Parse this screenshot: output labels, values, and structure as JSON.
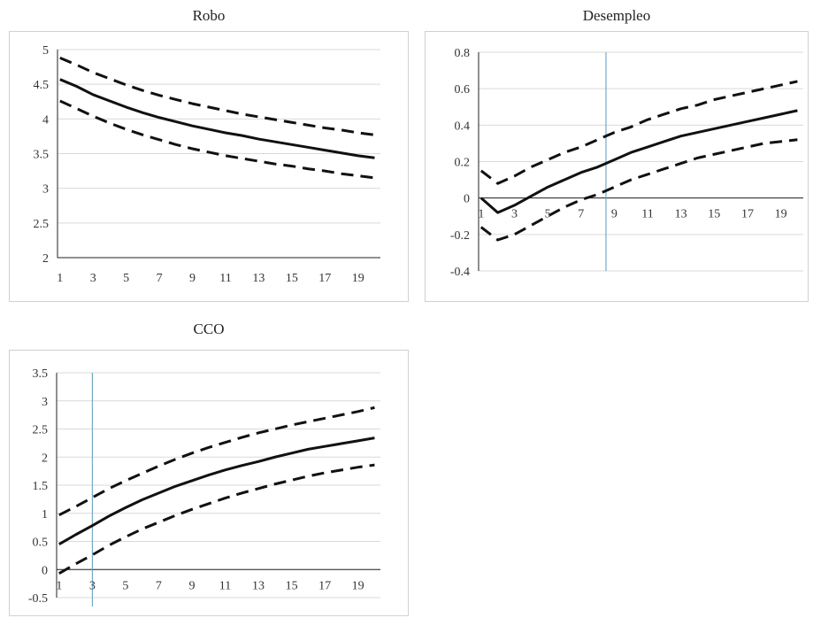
{
  "charts": {
    "robo": {
      "title": "Robo",
      "chart_data": {
        "type": "line",
        "title": "Robo",
        "x": [
          1,
          2,
          3,
          4,
          5,
          6,
          7,
          8,
          9,
          10,
          11,
          12,
          13,
          14,
          15,
          16,
          17,
          18,
          19,
          20
        ],
        "x_tick_labels": [
          "1",
          "3",
          "5",
          "7",
          "9",
          "11",
          "13",
          "15",
          "17",
          "19"
        ],
        "y_tick_labels": [
          "2",
          "2.5",
          "3",
          "3.5",
          "4",
          "4.5",
          "5"
        ],
        "ylim": [
          2,
          5
        ],
        "grid": true,
        "series": [
          {
            "style": "solid",
            "values": [
              4.57,
              4.47,
              4.35,
              4.26,
              4.17,
              4.09,
              4.02,
              3.96,
              3.9,
              3.85,
              3.8,
              3.76,
              3.71,
              3.67,
              3.63,
              3.59,
              3.55,
              3.51,
              3.47,
              3.44
            ]
          },
          {
            "style": "dashed",
            "values": [
              4.88,
              4.78,
              4.67,
              4.58,
              4.49,
              4.41,
              4.34,
              4.28,
              4.22,
              4.17,
              4.12,
              4.07,
              4.03,
              3.99,
              3.95,
              3.91,
              3.87,
              3.84,
              3.8,
              3.77
            ]
          },
          {
            "style": "dashed",
            "values": [
              4.26,
              4.15,
              4.04,
              3.94,
              3.85,
              3.77,
              3.7,
              3.63,
              3.57,
              3.52,
              3.47,
              3.43,
              3.39,
              3.35,
              3.32,
              3.28,
              3.25,
              3.21,
              3.18,
              3.15
            ]
          }
        ],
        "vline_x": null
      }
    },
    "desempleo": {
      "title": "Desempleo",
      "chart_data": {
        "type": "line",
        "title": "Desempleo",
        "x": [
          1,
          2,
          3,
          4,
          5,
          6,
          7,
          8,
          9,
          10,
          11,
          12,
          13,
          14,
          15,
          16,
          17,
          18,
          19,
          20
        ],
        "x_tick_labels": [
          "1",
          "3",
          "5",
          "7",
          "9",
          "11",
          "13",
          "15",
          "17",
          "19"
        ],
        "y_tick_labels": [
          "-0.4",
          "-0.2",
          "0",
          "0.2",
          "0.4",
          "0.6",
          "0.8"
        ],
        "ylim": [
          -0.4,
          0.8
        ],
        "grid": true,
        "series": [
          {
            "style": "solid",
            "values": [
              0.0,
              -0.08,
              -0.04,
              0.01,
              0.06,
              0.1,
              0.14,
              0.17,
              0.21,
              0.25,
              0.28,
              0.31,
              0.34,
              0.36,
              0.38,
              0.4,
              0.42,
              0.44,
              0.46,
              0.48
            ]
          },
          {
            "style": "dashed",
            "values": [
              0.15,
              0.08,
              0.12,
              0.17,
              0.21,
              0.25,
              0.28,
              0.32,
              0.36,
              0.39,
              0.43,
              0.46,
              0.49,
              0.51,
              0.54,
              0.56,
              0.58,
              0.6,
              0.62,
              0.64
            ]
          },
          {
            "style": "dashed",
            "values": [
              -0.16,
              -0.23,
              -0.2,
              -0.15,
              -0.1,
              -0.05,
              -0.01,
              0.02,
              0.06,
              0.1,
              0.13,
              0.16,
              0.19,
              0.22,
              0.24,
              0.26,
              0.28,
              0.3,
              0.31,
              0.32
            ]
          }
        ],
        "vline_x": 8.5
      }
    },
    "cco": {
      "title": "CCO",
      "chart_data": {
        "type": "line",
        "title": "CCO",
        "x": [
          1,
          2,
          3,
          4,
          5,
          6,
          7,
          8,
          9,
          10,
          11,
          12,
          13,
          14,
          15,
          16,
          17,
          18,
          19,
          20
        ],
        "x_tick_labels": [
          "1",
          "3",
          "5",
          "7",
          "9",
          "11",
          "13",
          "15",
          "17",
          "19"
        ],
        "y_tick_labels": [
          "-0.5",
          "0",
          "0.5",
          "1",
          "1.5",
          "2",
          "2.5",
          "3",
          "3.5"
        ],
        "ylim": [
          -0.5,
          3.5
        ],
        "grid": true,
        "series": [
          {
            "style": "solid",
            "values": [
              0.45,
              0.62,
              0.78,
              0.95,
              1.1,
              1.24,
              1.36,
              1.48,
              1.58,
              1.68,
              1.77,
              1.85,
              1.92,
              2.0,
              2.07,
              2.14,
              2.19,
              2.24,
              2.29,
              2.34
            ]
          },
          {
            "style": "dashed",
            "values": [
              0.97,
              1.12,
              1.28,
              1.44,
              1.58,
              1.71,
              1.84,
              1.96,
              2.07,
              2.17,
              2.26,
              2.35,
              2.43,
              2.5,
              2.57,
              2.63,
              2.69,
              2.75,
              2.81,
              2.88
            ]
          },
          {
            "style": "dashed",
            "values": [
              -0.07,
              0.1,
              0.26,
              0.43,
              0.58,
              0.72,
              0.84,
              0.96,
              1.07,
              1.17,
              1.27,
              1.36,
              1.44,
              1.52,
              1.59,
              1.66,
              1.72,
              1.77,
              1.82,
              1.86
            ]
          }
        ],
        "vline_x": 3
      }
    }
  },
  "colors": {
    "line": "#111111",
    "grid": "#d9d9d9",
    "axis": "#222222",
    "vline": "#5b9bbd"
  }
}
